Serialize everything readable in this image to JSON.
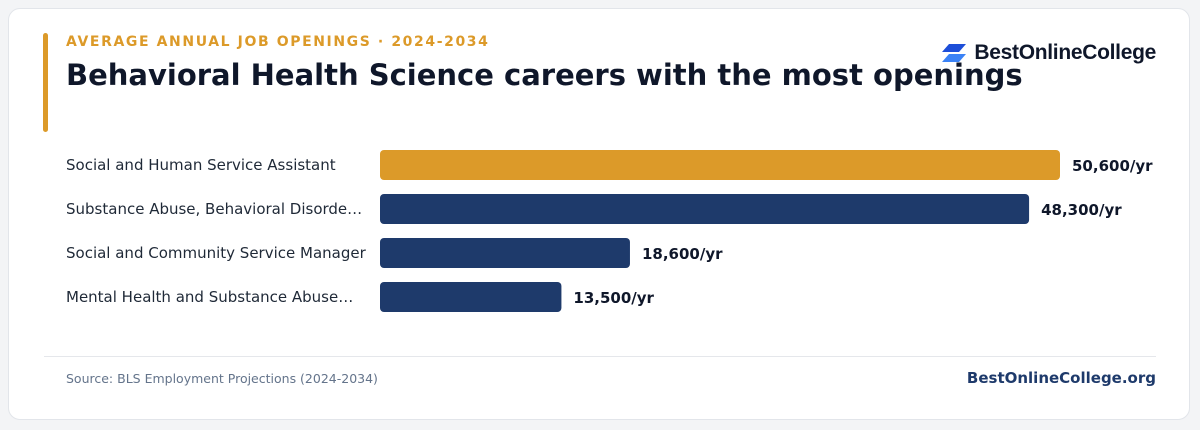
{
  "header": {
    "eyebrow": "AVERAGE ANNUAL JOB OPENINGS · 2024-2034",
    "title": "Behavioral Health Science careers with the most openings"
  },
  "logo": {
    "text": "BestOnlineCollege",
    "icon": "stacked-parallelogram-logo-icon"
  },
  "colors": {
    "accent": "#dc9a29",
    "bar": "#1e3a6b",
    "highlight_bar": "#dc9a29",
    "title": "#0f172a"
  },
  "chart_data": {
    "type": "bar",
    "orientation": "horizontal",
    "categories": [
      "Social and Human Service Assistant",
      "Substance Abuse, Behavioral Disorde…",
      "Social and Community Service Manager",
      "Mental Health and Substance Abuse…"
    ],
    "values": [
      50600,
      48300,
      18600,
      13500
    ],
    "value_labels": [
      "50,600/yr",
      "48,300/yr",
      "18,600/yr",
      "13,500/yr"
    ],
    "highlight_index": 0,
    "xlim": [
      0,
      50600
    ],
    "grid": false,
    "legend": "none"
  },
  "footer": {
    "source": "Source: BLS Employment Projections (2024-2034)",
    "site": "BestOnlineCollege.org"
  }
}
